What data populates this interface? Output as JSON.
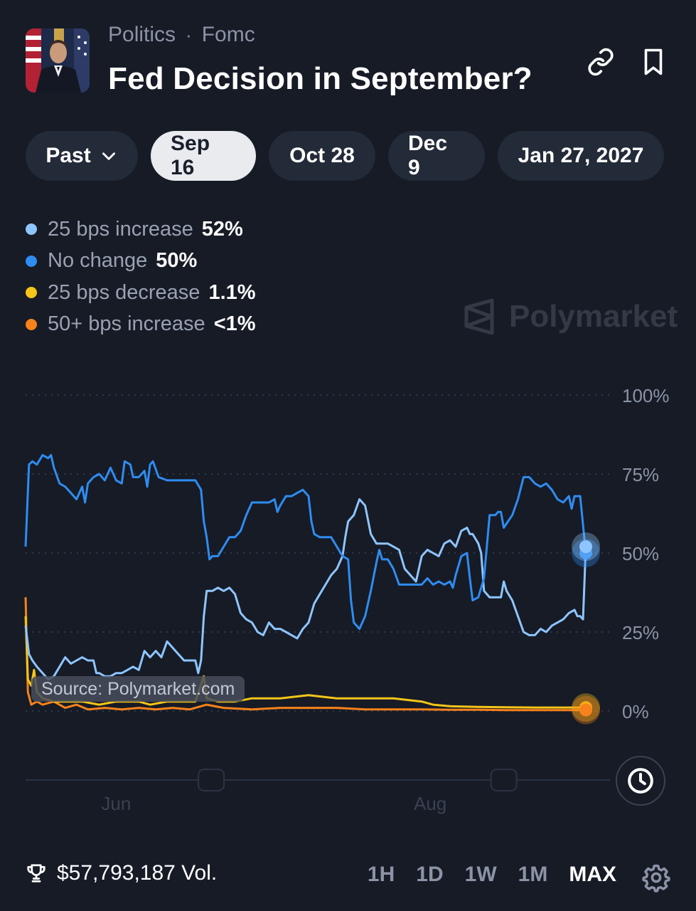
{
  "header": {
    "breadcrumb": [
      "Politics",
      "Fomc"
    ],
    "separator": "·",
    "title": "Fed Decision in September?"
  },
  "date_tabs": [
    {
      "label": "Past",
      "dropdown": true,
      "active": false
    },
    {
      "label": "Sep 16",
      "active": true
    },
    {
      "label": "Oct 28",
      "active": false
    },
    {
      "label": "Dec 9",
      "active": false
    },
    {
      "label": "Jan 27, 2027",
      "active": false
    }
  ],
  "legend": [
    {
      "name": "25 bps increase",
      "value": "52%",
      "color": "#8ec5ff"
    },
    {
      "name": "No change",
      "value": "50%",
      "color": "#2f8cf0"
    },
    {
      "name": "25 bps decrease",
      "value": "1.1%",
      "color": "#f5c518"
    },
    {
      "name": "50+ bps increase",
      "value": "<1%",
      "color": "#f7821b"
    }
  ],
  "watermark": "Polymarket",
  "source_label": "Source: Polymarket.com",
  "footer": {
    "volume": "$57,793,187 Vol.",
    "ranges": [
      "1H",
      "1D",
      "1W",
      "1M",
      "MAX"
    ],
    "active_range": "MAX"
  },
  "icons": {
    "link": "link-icon",
    "bookmark": "bookmark-icon",
    "chevron": "chevron-down-icon",
    "clock": "clock-icon",
    "trophy": "trophy-icon",
    "gear": "gear-icon"
  },
  "chart_data": {
    "type": "line",
    "y_ticks": [
      "100%",
      "75%",
      "50%",
      "25%",
      "0%"
    ],
    "x_ticks": [
      {
        "label": "Jun",
        "t": 0.16
      },
      {
        "label": "Aug",
        "t": 0.715
      }
    ],
    "ylim": [
      0,
      100
    ],
    "grid": true,
    "series": [
      {
        "name": "No change",
        "color": "#2f8cf0",
        "points": [
          [
            0,
            52
          ],
          [
            0.006,
            78
          ],
          [
            0.012,
            79
          ],
          [
            0.02,
            78
          ],
          [
            0.03,
            81
          ],
          [
            0.04,
            80
          ],
          [
            0.045,
            81
          ],
          [
            0.05,
            77
          ],
          [
            0.06,
            72
          ],
          [
            0.07,
            71
          ],
          [
            0.08,
            69
          ],
          [
            0.09,
            67
          ],
          [
            0.1,
            71
          ],
          [
            0.105,
            66
          ],
          [
            0.11,
            72
          ],
          [
            0.12,
            74
          ],
          [
            0.13,
            75
          ],
          [
            0.14,
            73
          ],
          [
            0.15,
            77
          ],
          [
            0.16,
            73
          ],
          [
            0.17,
            72
          ],
          [
            0.175,
            79
          ],
          [
            0.185,
            78
          ],
          [
            0.19,
            74
          ],
          [
            0.2,
            74
          ],
          [
            0.21,
            76
          ],
          [
            0.215,
            71
          ],
          [
            0.22,
            78
          ],
          [
            0.225,
            79
          ],
          [
            0.235,
            74
          ],
          [
            0.25,
            73
          ],
          [
            0.26,
            73
          ],
          [
            0.27,
            73
          ],
          [
            0.28,
            73
          ],
          [
            0.29,
            73
          ],
          [
            0.3,
            73
          ],
          [
            0.31,
            70
          ],
          [
            0.315,
            60
          ],
          [
            0.32,
            55
          ],
          [
            0.325,
            48
          ],
          [
            0.33,
            49
          ],
          [
            0.34,
            49
          ],
          [
            0.35,
            52
          ],
          [
            0.36,
            55
          ],
          [
            0.37,
            55
          ],
          [
            0.38,
            57
          ],
          [
            0.39,
            62
          ],
          [
            0.4,
            66
          ],
          [
            0.41,
            66
          ],
          [
            0.42,
            66
          ],
          [
            0.43,
            66
          ],
          [
            0.44,
            67
          ],
          [
            0.445,
            63
          ],
          [
            0.45,
            65
          ],
          [
            0.46,
            68
          ],
          [
            0.47,
            68
          ],
          [
            0.48,
            69
          ],
          [
            0.49,
            70
          ],
          [
            0.5,
            68
          ],
          [
            0.505,
            60
          ],
          [
            0.51,
            56
          ],
          [
            0.52,
            55
          ],
          [
            0.53,
            55
          ],
          [
            0.54,
            55
          ],
          [
            0.55,
            52
          ],
          [
            0.56,
            49
          ],
          [
            0.57,
            48
          ],
          [
            0.575,
            35
          ],
          [
            0.58,
            28
          ],
          [
            0.59,
            26
          ],
          [
            0.6,
            30
          ],
          [
            0.61,
            38
          ],
          [
            0.62,
            47
          ],
          [
            0.625,
            51
          ],
          [
            0.63,
            48
          ],
          [
            0.64,
            48
          ],
          [
            0.65,
            45
          ],
          [
            0.66,
            40
          ],
          [
            0.67,
            40
          ],
          [
            0.68,
            40
          ],
          [
            0.69,
            40
          ],
          [
            0.7,
            40
          ],
          [
            0.71,
            42
          ],
          [
            0.72,
            40
          ],
          [
            0.73,
            41
          ],
          [
            0.74,
            40
          ],
          [
            0.75,
            41
          ],
          [
            0.755,
            39
          ],
          [
            0.76,
            43
          ],
          [
            0.77,
            49
          ],
          [
            0.78,
            50
          ],
          [
            0.785,
            42
          ],
          [
            0.79,
            35
          ],
          [
            0.8,
            36
          ],
          [
            0.81,
            42
          ],
          [
            0.82,
            62
          ],
          [
            0.83,
            62
          ],
          [
            0.835,
            63
          ],
          [
            0.84,
            63
          ],
          [
            0.845,
            58
          ],
          [
            0.86,
            62
          ],
          [
            0.87,
            67
          ],
          [
            0.88,
            74
          ],
          [
            0.89,
            74
          ],
          [
            0.9,
            72
          ],
          [
            0.91,
            71
          ],
          [
            0.92,
            72
          ],
          [
            0.93,
            70
          ],
          [
            0.94,
            67
          ],
          [
            0.95,
            66
          ],
          [
            0.96,
            68
          ],
          [
            0.965,
            64
          ],
          [
            0.97,
            68
          ],
          [
            0.98,
            68
          ],
          [
            0.99,
            50
          ]
        ]
      },
      {
        "name": "25 bps increase",
        "color": "#8ec5ff",
        "points": [
          [
            0,
            27
          ],
          [
            0.006,
            18
          ],
          [
            0.012,
            16
          ],
          [
            0.02,
            14
          ],
          [
            0.03,
            12
          ],
          [
            0.04,
            10
          ],
          [
            0.05,
            11
          ],
          [
            0.06,
            14
          ],
          [
            0.07,
            17
          ],
          [
            0.08,
            15
          ],
          [
            0.09,
            16
          ],
          [
            0.1,
            17
          ],
          [
            0.11,
            16
          ],
          [
            0.12,
            16
          ],
          [
            0.125,
            12
          ],
          [
            0.13,
            12
          ],
          [
            0.14,
            11
          ],
          [
            0.15,
            11
          ],
          [
            0.16,
            12
          ],
          [
            0.17,
            12
          ],
          [
            0.18,
            13
          ],
          [
            0.19,
            14
          ],
          [
            0.2,
            13
          ],
          [
            0.21,
            19
          ],
          [
            0.22,
            17
          ],
          [
            0.23,
            19
          ],
          [
            0.24,
            17
          ],
          [
            0.25,
            22
          ],
          [
            0.26,
            20
          ],
          [
            0.27,
            18
          ],
          [
            0.28,
            16
          ],
          [
            0.29,
            16
          ],
          [
            0.3,
            16
          ],
          [
            0.305,
            12
          ],
          [
            0.31,
            16
          ],
          [
            0.315,
            30
          ],
          [
            0.32,
            38
          ],
          [
            0.33,
            38
          ],
          [
            0.34,
            39
          ],
          [
            0.35,
            38
          ],
          [
            0.36,
            39
          ],
          [
            0.37,
            37
          ],
          [
            0.38,
            31
          ],
          [
            0.39,
            29
          ],
          [
            0.4,
            28
          ],
          [
            0.41,
            25
          ],
          [
            0.42,
            24
          ],
          [
            0.43,
            28
          ],
          [
            0.44,
            26
          ],
          [
            0.45,
            26
          ],
          [
            0.46,
            25
          ],
          [
            0.47,
            24
          ],
          [
            0.48,
            23
          ],
          [
            0.49,
            26
          ],
          [
            0.5,
            28
          ],
          [
            0.51,
            34
          ],
          [
            0.52,
            37
          ],
          [
            0.53,
            40
          ],
          [
            0.54,
            43
          ],
          [
            0.55,
            45
          ],
          [
            0.56,
            49
          ],
          [
            0.565,
            55
          ],
          [
            0.57,
            60
          ],
          [
            0.58,
            62
          ],
          [
            0.59,
            67
          ],
          [
            0.6,
            65
          ],
          [
            0.61,
            56
          ],
          [
            0.62,
            53
          ],
          [
            0.63,
            53
          ],
          [
            0.64,
            53
          ],
          [
            0.65,
            52
          ],
          [
            0.66,
            51
          ],
          [
            0.67,
            45
          ],
          [
            0.68,
            43
          ],
          [
            0.69,
            41
          ],
          [
            0.7,
            49
          ],
          [
            0.71,
            51
          ],
          [
            0.72,
            50
          ],
          [
            0.73,
            49
          ],
          [
            0.74,
            53
          ],
          [
            0.75,
            54
          ],
          [
            0.76,
            52
          ],
          [
            0.77,
            57
          ],
          [
            0.78,
            58
          ],
          [
            0.785,
            56
          ],
          [
            0.79,
            56
          ],
          [
            0.8,
            53
          ],
          [
            0.805,
            50
          ],
          [
            0.81,
            38
          ],
          [
            0.82,
            36
          ],
          [
            0.83,
            36
          ],
          [
            0.84,
            36
          ],
          [
            0.845,
            41
          ],
          [
            0.85,
            38
          ],
          [
            0.86,
            35
          ],
          [
            0.87,
            30
          ],
          [
            0.88,
            25
          ],
          [
            0.89,
            24
          ],
          [
            0.9,
            24
          ],
          [
            0.91,
            26
          ],
          [
            0.92,
            25
          ],
          [
            0.93,
            27
          ],
          [
            0.94,
            28
          ],
          [
            0.95,
            29
          ],
          [
            0.96,
            31
          ],
          [
            0.97,
            32
          ],
          [
            0.975,
            30
          ],
          [
            0.98,
            30
          ],
          [
            0.985,
            29
          ],
          [
            0.99,
            52
          ]
        ]
      },
      {
        "name": "25 bps decrease",
        "color": "#f5c518",
        "points": [
          [
            0,
            30
          ],
          [
            0.004,
            10
          ],
          [
            0.01,
            8
          ],
          [
            0.015,
            13
          ],
          [
            0.02,
            6
          ],
          [
            0.03,
            4
          ],
          [
            0.05,
            3
          ],
          [
            0.07,
            3
          ],
          [
            0.1,
            3
          ],
          [
            0.13,
            2
          ],
          [
            0.16,
            3
          ],
          [
            0.2,
            3
          ],
          [
            0.22,
            2
          ],
          [
            0.25,
            3
          ],
          [
            0.28,
            3
          ],
          [
            0.3,
            3
          ],
          [
            0.315,
            11
          ],
          [
            0.32,
            4
          ],
          [
            0.34,
            3
          ],
          [
            0.37,
            3
          ],
          [
            0.4,
            4
          ],
          [
            0.45,
            4
          ],
          [
            0.5,
            5
          ],
          [
            0.55,
            4
          ],
          [
            0.6,
            4
          ],
          [
            0.65,
            4
          ],
          [
            0.7,
            3
          ],
          [
            0.72,
            2
          ],
          [
            0.75,
            1.5
          ],
          [
            0.8,
            1.3
          ],
          [
            0.85,
            1.2
          ],
          [
            0.9,
            1.1
          ],
          [
            0.95,
            1.1
          ],
          [
            0.99,
            1.1
          ]
        ]
      },
      {
        "name": "50+ bps increase",
        "color": "#f7821b",
        "points": [
          [
            0,
            36
          ],
          [
            0.004,
            6
          ],
          [
            0.01,
            2
          ],
          [
            0.02,
            3
          ],
          [
            0.03,
            2
          ],
          [
            0.05,
            3
          ],
          [
            0.07,
            1
          ],
          [
            0.09,
            2
          ],
          [
            0.11,
            0.5
          ],
          [
            0.14,
            1
          ],
          [
            0.17,
            0.5
          ],
          [
            0.2,
            1
          ],
          [
            0.23,
            0.5
          ],
          [
            0.26,
            1
          ],
          [
            0.29,
            0.5
          ],
          [
            0.32,
            2
          ],
          [
            0.35,
            1
          ],
          [
            0.4,
            0.5
          ],
          [
            0.45,
            1
          ],
          [
            0.5,
            1
          ],
          [
            0.55,
            1
          ],
          [
            0.6,
            0.5
          ],
          [
            0.65,
            0.5
          ],
          [
            0.7,
            0.5
          ],
          [
            0.75,
            0.4
          ],
          [
            0.8,
            0.4
          ],
          [
            0.85,
            0.3
          ],
          [
            0.9,
            0.3
          ],
          [
            0.95,
            0.3
          ],
          [
            0.99,
            0.3
          ]
        ]
      }
    ]
  }
}
